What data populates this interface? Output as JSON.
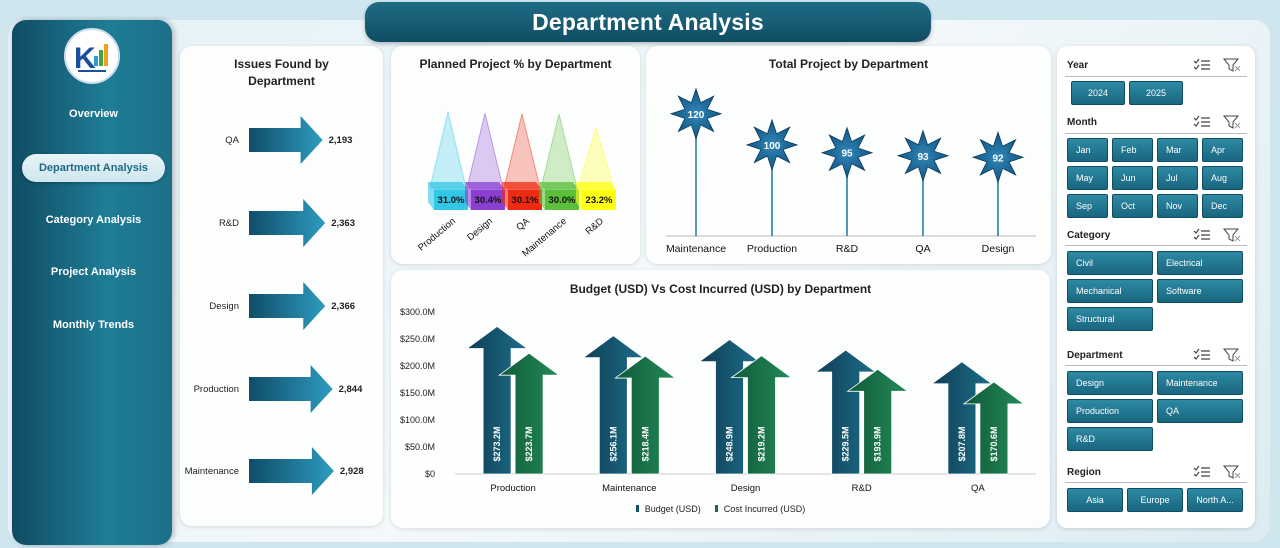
{
  "header": {
    "title": "Department Analysis"
  },
  "sidebar": {
    "items": [
      {
        "label": "Overview"
      },
      {
        "label": "Department Analysis",
        "active": true
      },
      {
        "label": "Category Analysis"
      },
      {
        "label": "Project Analysis"
      },
      {
        "label": "Monthly Trends"
      }
    ]
  },
  "colors": {
    "accent": "#1f6c85",
    "budget": "#14506a",
    "cost": "#1a6b45"
  },
  "issues_chart": {
    "title_line1": "Issues Found by",
    "title_line2": "Department",
    "chart_data": {
      "type": "bar",
      "categories": [
        "QA",
        "R&D",
        "Design",
        "Production",
        "Maintenance"
      ],
      "values": [
        2193,
        2363,
        2366,
        2844,
        2928
      ],
      "labels": [
        "2,193",
        "2,363",
        "2,366",
        "2,844",
        "2,928"
      ]
    }
  },
  "planned_chart": {
    "title": "Planned Project % by Department",
    "chart_data": {
      "type": "bar",
      "categories": [
        "Production",
        "Design",
        "QA",
        "Maintenance",
        "R&D"
      ],
      "values": [
        31.0,
        30.4,
        30.1,
        30.0,
        23.2
      ],
      "labels": [
        "31.0%",
        "30.4%",
        "30.1%",
        "30.0%",
        "23.2%"
      ],
      "colors": [
        "#33c7e6",
        "#8a3fd1",
        "#ee2a12",
        "#5bbf3b",
        "#ffff10"
      ]
    }
  },
  "total_chart": {
    "title": "Total Project by Department",
    "chart_data": {
      "type": "bar",
      "categories": [
        "Maintenance",
        "Production",
        "R&D",
        "QA",
        "Design"
      ],
      "values": [
        120,
        100,
        95,
        93,
        92
      ]
    }
  },
  "budget_chart": {
    "title": "Budget (USD) Vs Cost Incurred (USD) by Department",
    "chart_data": {
      "type": "bar",
      "categories": [
        "Production",
        "Maintenance",
        "Design",
        "R&D",
        "QA"
      ],
      "y_ticks": [
        "$0",
        "$50.0M",
        "$100.0M",
        "$150.0M",
        "$200.0M",
        "$250.0M",
        "$300.0M"
      ],
      "ylim": [
        0,
        300
      ],
      "legend_position": "bottom",
      "series": [
        {
          "name": "Budget (USD)",
          "values": [
            273.2,
            256.1,
            248.9,
            229.5,
            207.8
          ],
          "labels": [
            "$273.2M",
            "$256.1M",
            "$248.9M",
            "$229.5M",
            "$207.8M"
          ]
        },
        {
          "name": "Cost Incurred (USD)",
          "values": [
            223.7,
            218.4,
            219.2,
            193.9,
            170.6
          ],
          "labels": [
            "$223.7M",
            "$218.4M",
            "$219.2M",
            "$193.9M",
            "$170.6M"
          ]
        }
      ]
    }
  },
  "slicers": {
    "year": {
      "title": "Year",
      "options": [
        "2024",
        "2025"
      ]
    },
    "month": {
      "title": "Month",
      "options": [
        "Jan",
        "Feb",
        "Mar",
        "Apr",
        "May",
        "Jun",
        "Jul",
        "Aug",
        "Sep",
        "Oct",
        "Nov",
        "Dec"
      ]
    },
    "category": {
      "title": "Category",
      "options": [
        "Civil",
        "Electrical",
        "Mechanical",
        "Software",
        "Structural"
      ]
    },
    "department": {
      "title": "Department",
      "options": [
        "Design",
        "Maintenance",
        "Production",
        "QA",
        "R&D"
      ]
    },
    "region": {
      "title": "Region",
      "options": [
        "Asia",
        "Europe",
        "North A..."
      ]
    }
  }
}
